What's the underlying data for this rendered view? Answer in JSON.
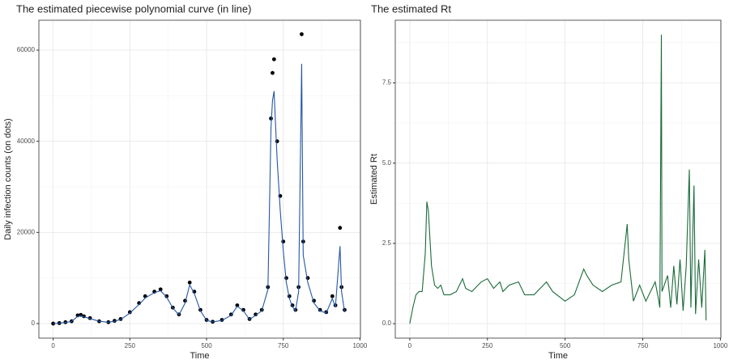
{
  "chart_data": [
    {
      "type": "scatter",
      "title": "The estimated piecewise polynomial curve (in line)",
      "x_label": "Time",
      "y_label": "Daily infection counts (on dots)",
      "xlim": [
        -46.6,
        1001.6
      ],
      "ylim": [
        -3195,
        66570
      ],
      "xticks": [
        0,
        250,
        500,
        750,
        1000
      ],
      "yticks": [
        0,
        20000,
        40000,
        60000
      ],
      "x_minor_grid": [
        125,
        375,
        625,
        875
      ],
      "y_minor_grid": [
        10000,
        30000,
        50000
      ],
      "grid": true,
      "series": [
        {
          "style": "points",
          "color": "#000000",
          "x": [
            0,
            20,
            40,
            60,
            80,
            90,
            100,
            120,
            150,
            180,
            200,
            220,
            250,
            280,
            300,
            330,
            350,
            370,
            390,
            410,
            430,
            445,
            460,
            480,
            500,
            520,
            550,
            580,
            600,
            620,
            640,
            660,
            680,
            700,
            710,
            715,
            720,
            730,
            740,
            750,
            760,
            770,
            780,
            790,
            800,
            810,
            815,
            830,
            850,
            870,
            890,
            910,
            920,
            935,
            940,
            950
          ],
          "values": [
            0,
            100,
            300,
            500,
            1800,
            1900,
            1600,
            1200,
            500,
            300,
            600,
            1000,
            2500,
            4500,
            6000,
            7000,
            7500,
            6000,
            3500,
            2000,
            5000,
            9000,
            7000,
            3000,
            800,
            400,
            800,
            2000,
            4000,
            3000,
            1000,
            2000,
            3000,
            8000,
            45000,
            55000,
            58000,
            40000,
            28000,
            18000,
            10000,
            6000,
            4000,
            3000,
            8000,
            63500,
            18000,
            10000,
            5000,
            3000,
            2500,
            6000,
            4000,
            21000,
            8000,
            3000
          ]
        },
        {
          "style": "line",
          "color": "#2456a4",
          "x": [
            0,
            20,
            40,
            60,
            80,
            90,
            100,
            120,
            150,
            180,
            200,
            220,
            250,
            280,
            300,
            330,
            350,
            370,
            390,
            410,
            430,
            445,
            460,
            480,
            500,
            520,
            550,
            580,
            600,
            620,
            640,
            660,
            680,
            700,
            710,
            715,
            720,
            730,
            740,
            750,
            760,
            770,
            780,
            790,
            800,
            810,
            815,
            830,
            850,
            870,
            890,
            910,
            920,
            935,
            940,
            950
          ],
          "values": [
            0,
            80,
            250,
            450,
            1600,
            1700,
            1500,
            1100,
            500,
            300,
            500,
            900,
            2300,
            4200,
            5600,
            6800,
            7200,
            5800,
            3400,
            1900,
            4500,
            8500,
            6600,
            2800,
            700,
            350,
            700,
            1800,
            3800,
            2800,
            900,
            1800,
            2800,
            7500,
            43000,
            49000,
            51000,
            36000,
            25000,
            16000,
            9000,
            5500,
            3700,
            2800,
            7000,
            57000,
            15000,
            9000,
            4500,
            2800,
            2300,
            5500,
            3600,
            17000,
            7000,
            2500
          ]
        }
      ]
    },
    {
      "type": "line",
      "title": "The estimated Rt",
      "x_label": "Time",
      "y_label": "Estimated Rt",
      "xlim": [
        -46.6,
        1001.6
      ],
      "ylim": [
        -0.45,
        9.45
      ],
      "xticks": [
        0,
        250,
        500,
        750,
        1000
      ],
      "yticks": [
        {
          "value": 0,
          "label": "0.0"
        },
        {
          "value": 2.5,
          "label": "2.5"
        },
        {
          "value": 5,
          "label": "5.0"
        },
        {
          "value": 7.5,
          "label": "7.5"
        }
      ],
      "x_minor_grid": [
        125,
        375,
        625,
        875
      ],
      "y_minor_grid": [
        1.25,
        3.75,
        6.25,
        8.75
      ],
      "grid": true,
      "series": [
        {
          "style": "line",
          "color": "#1b6b3a",
          "x": [
            0,
            10,
            20,
            30,
            40,
            50,
            55,
            60,
            70,
            80,
            90,
            100,
            110,
            130,
            150,
            170,
            180,
            200,
            230,
            250,
            270,
            290,
            300,
            320,
            350,
            370,
            400,
            430,
            440,
            460,
            500,
            530,
            560,
            570,
            590,
            620,
            650,
            680,
            700,
            705,
            720,
            740,
            760,
            790,
            800,
            805,
            810,
            812,
            830,
            840,
            850,
            860,
            870,
            880,
            890,
            900,
            905,
            915,
            920,
            930,
            940,
            950,
            954
          ],
          "values": [
            0,
            0.5,
            0.9,
            1.0,
            1.0,
            2.2,
            3.8,
            3.5,
            1.8,
            1.2,
            1.1,
            1.2,
            0.9,
            0.9,
            1.0,
            1.4,
            1.1,
            1.0,
            1.3,
            1.4,
            1.1,
            1.3,
            1.0,
            1.2,
            1.3,
            0.9,
            0.9,
            1.2,
            1.3,
            1.0,
            0.7,
            0.9,
            1.7,
            1.5,
            1.2,
            1.0,
            1.2,
            1.3,
            3.1,
            2.0,
            0.7,
            1.2,
            0.7,
            1.3,
            0.8,
            0.5,
            9.0,
            1.0,
            1.5,
            0.5,
            1.8,
            0.6,
            2.0,
            0.4,
            1.8,
            4.8,
            0.5,
            4.3,
            0.3,
            2.0,
            0.5,
            2.3,
            0.1
          ]
        }
      ]
    }
  ]
}
